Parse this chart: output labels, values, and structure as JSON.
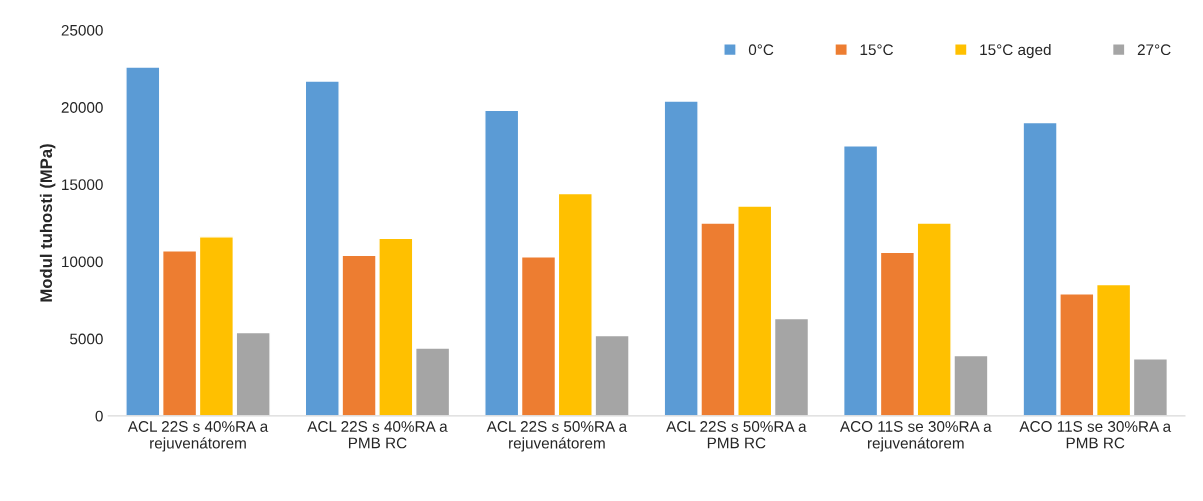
{
  "chart_data": {
    "type": "bar",
    "ylabel": "Modul tuhosti (MPa)",
    "categories": [
      "ACL 22S s 40%RA a\nrejuvenátorem",
      "ACL 22S s 40%RA a\nPMB RC",
      "ACL 22S s 50%RA a\nrejuvenátorem",
      "ACL 22S s 50%RA a\nPMB RC",
      "ACO 11S se 30%RA a\nrejuvenátorem",
      "ACO 11S se 30%RA a\nPMB RC"
    ],
    "series": [
      {
        "name": "0°C",
        "color": "#5b9bd5",
        "values": [
          22600,
          21700,
          19800,
          20400,
          17500,
          19000
        ]
      },
      {
        "name": "15°C",
        "color": "#ed7d31",
        "values": [
          10700,
          10400,
          10300,
          12500,
          10600,
          7900
        ]
      },
      {
        "name": "15°C aged",
        "color": "#ffc000",
        "values": [
          11600,
          11500,
          14400,
          13600,
          12500,
          8500
        ]
      },
      {
        "name": "27°C",
        "color": "#a5a5a5",
        "values": [
          5400,
          4400,
          5200,
          6300,
          3900,
          3700
        ]
      }
    ],
    "ylim": [
      0,
      25000
    ],
    "yticks": [
      0,
      5000,
      10000,
      15000,
      20000,
      25000
    ],
    "grid": false,
    "legend": "top right"
  }
}
